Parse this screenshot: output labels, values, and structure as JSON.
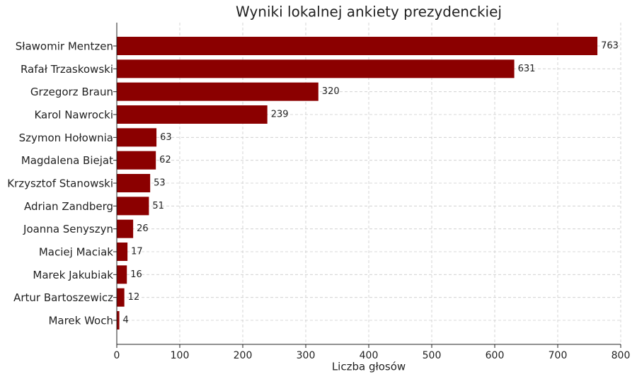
{
  "chart_data": {
    "type": "barh",
    "title": "Wyniki lokalnej ankiety prezydenckiej",
    "xlabel": "Liczba głosów",
    "categories": [
      "Sławomir Mentzen",
      "Rafał Trzaskowski",
      "Grzegorz Braun",
      "Karol Nawrocki",
      "Szymon Hołownia",
      "Magdalena Biejat",
      "Krzysztof Stanowski",
      "Adrian Zandberg",
      "Joanna Senyszyn",
      "Maciej Maciak",
      "Marek Jakubiak",
      "Artur Bartoszewicz",
      "Marek Woch"
    ],
    "values": [
      763,
      631,
      320,
      239,
      63,
      62,
      53,
      51,
      26,
      17,
      16,
      12,
      4
    ],
    "color": "#8b0000",
    "xlim": [
      0,
      800
    ],
    "xticks": [
      0,
      100,
      200,
      300,
      400,
      500,
      600,
      700,
      800
    ],
    "grid": true
  }
}
